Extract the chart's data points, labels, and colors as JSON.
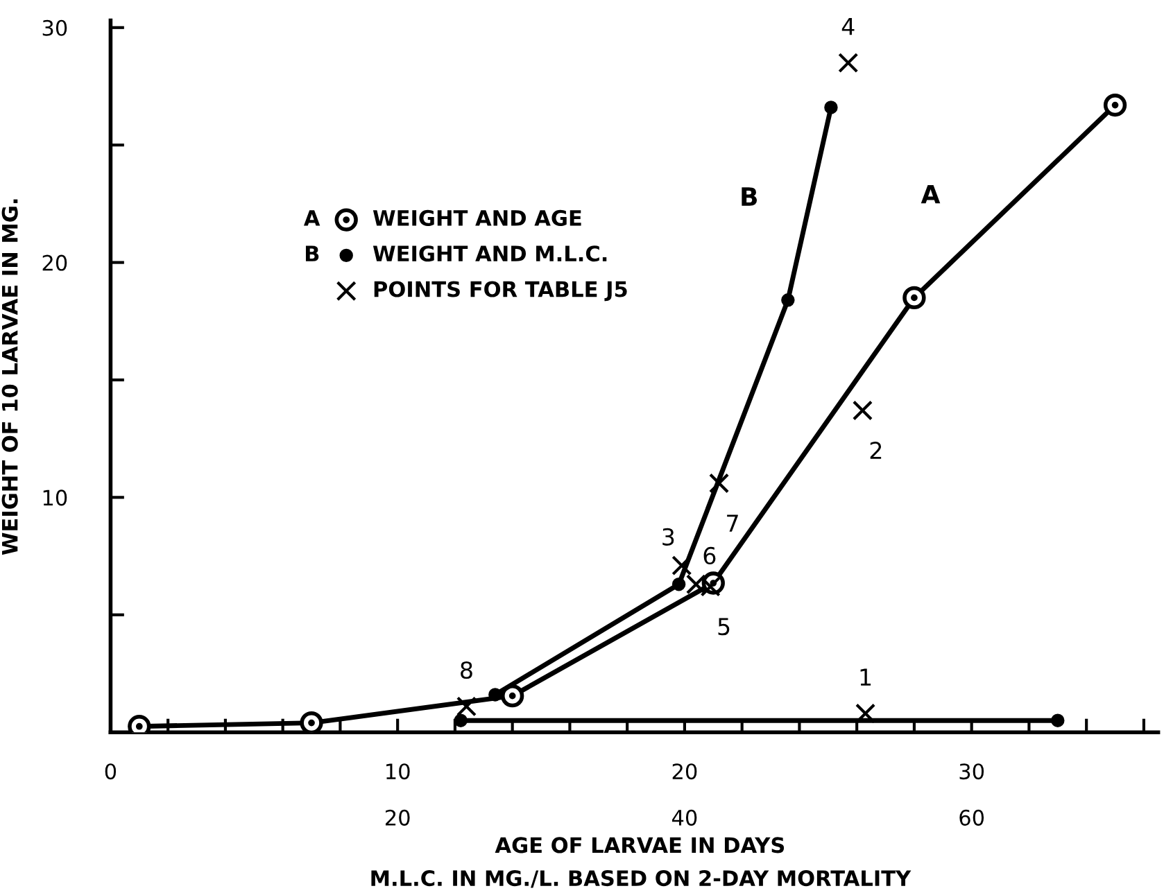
{
  "chart_data": {
    "type": "line",
    "xlabel": "AGE OF LARVAE IN DAYS",
    "x2label": "M.L.C. IN MG./L. BASED ON 2-DAY MORTALITY",
    "ylabel": "WEIGHT OF 10 LARVAE IN MG.",
    "xlim": [
      0,
      36.5
    ],
    "xticks": [
      0,
      {
        "value": 2,
        "label": null
      },
      {
        "value": 4,
        "label": null
      },
      {
        "value": 6,
        "label": null
      },
      {
        "value": 8,
        "label": null
      },
      10,
      {
        "value": 12,
        "label": null
      },
      {
        "value": 14,
        "label": null
      },
      {
        "value": 16,
        "label": null
      },
      {
        "value": 18,
        "label": null
      },
      20,
      {
        "value": 22,
        "label": null
      },
      {
        "value": 24,
        "label": null
      },
      {
        "value": 26,
        "label": null
      },
      {
        "value": 28,
        "label": null
      },
      30,
      {
        "value": 32,
        "label": null
      },
      {
        "value": 34,
        "label": null
      },
      {
        "value": 36,
        "label": null
      }
    ],
    "x2lim": [
      0,
      73
    ],
    "x2ticks": [
      20,
      40,
      60
    ],
    "ylim": [
      0,
      30.3
    ],
    "yticks": [
      {
        "value": 5,
        "label": null
      },
      10,
      {
        "value": 15,
        "label": null
      },
      20,
      {
        "value": 25,
        "label": null
      },
      30
    ],
    "grid": false,
    "legend": "left",
    "series": [
      {
        "name": "WEIGHT AND AGE",
        "marker": "circle",
        "color": "#000000",
        "x": [
          1,
          7,
          14,
          21,
          28,
          35
        ],
        "values": [
          0.25,
          0.4,
          1.55,
          6.35,
          18.5,
          26.7
        ]
      },
      {
        "name": "WEIGHT AND M.L.C.",
        "axis": "x2",
        "marker": "dot",
        "color": "#000000",
        "x": [
          26.8,
          39.6,
          47.2,
          50.2
        ],
        "values": [
          1.6,
          6.3,
          18.4,
          26.6
        ]
      },
      {
        "axis": "x2",
        "marker": "dot",
        "color": "#000000",
        "x": [
          24.4,
          66
        ],
        "values": [
          0.5,
          0.5
        ]
      },
      {
        "name": "POINTS FOR TABLE J5",
        "type": "scatter",
        "marker": "cross",
        "color": "#000000",
        "x": [
          26.3,
          26.2,
          19.9,
          25.7,
          20.9,
          20.4,
          21.2,
          12.4
        ],
        "values": [
          0.8,
          13.7,
          7.1,
          28.5,
          6.2,
          6.3,
          10.6,
          1.1
        ]
      }
    ],
    "annotations": [
      "A",
      "B",
      {
        "text": "1",
        "x": 26.3,
        "y": 0.8
      },
      {
        "text": "2",
        "x": 26.2,
        "y": 13.7
      },
      {
        "text": "3",
        "x": 19.9,
        "y": 7.1
      },
      {
        "text": "4",
        "x": 25.7,
        "y": 28.5
      },
      {
        "text": "5",
        "x": 20.9,
        "y": 6.2
      },
      {
        "text": "6",
        "x": 20.4,
        "y": 6.3
      },
      {
        "text": "7",
        "x": 21.2,
        "y": 10.6
      },
      {
        "text": "8",
        "x": 12.4,
        "y": 1.1
      }
    ]
  }
}
